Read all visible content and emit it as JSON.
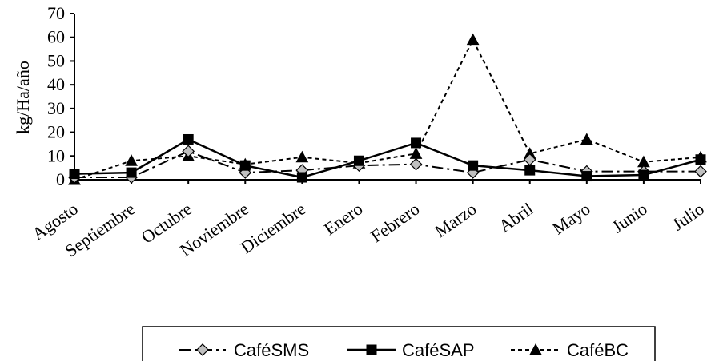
{
  "chart_data": {
    "type": "line",
    "categories": [
      "Agosto",
      "Septiembre",
      "Octubre",
      "Noviembre",
      "Diciembre",
      "Enero",
      "Febrero",
      "Marzo",
      "Abril",
      "Mayo",
      "Junio",
      "Julio"
    ],
    "ylabel": "kg/Ha/año",
    "ylim": [
      0,
      70
    ],
    "yticks": [
      0,
      10,
      20,
      30,
      40,
      50,
      60,
      70
    ],
    "legend_position": "bottom",
    "series": [
      {
        "name": "CaféSMS",
        "marker": "diamond",
        "line": "dash-dot",
        "color": "#000000",
        "marker_fill": "#c0c0c0",
        "values": [
          1,
          1,
          12,
          3,
          4,
          6,
          6.5,
          3,
          8.5,
          3.5,
          3.5,
          3.5
        ]
      },
      {
        "name": "CaféSAP",
        "marker": "square",
        "line": "solid",
        "color": "#000000",
        "marker_fill": "#000000",
        "values": [
          2.5,
          3,
          17,
          6,
          1,
          8,
          15.5,
          6,
          4,
          1.5,
          2,
          8.5
        ]
      },
      {
        "name": "CaféBC",
        "marker": "triangle",
        "line": "dashed",
        "color": "#000000",
        "marker_fill": "#000000",
        "values": [
          0,
          8,
          10,
          6.5,
          9.5,
          7,
          11,
          59,
          11,
          17,
          7.5,
          9.5
        ]
      }
    ]
  }
}
